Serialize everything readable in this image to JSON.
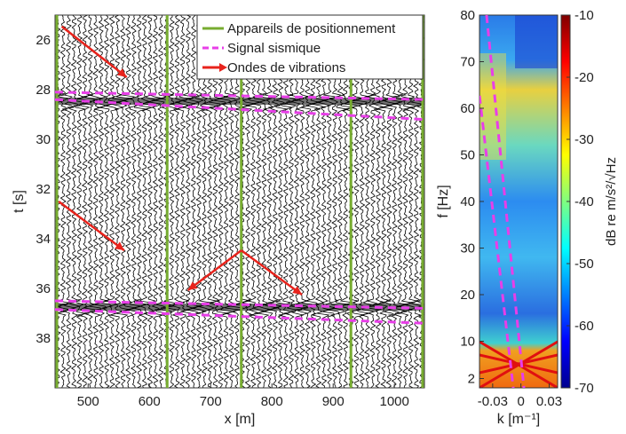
{
  "chart_data": [
    {
      "type": "seismic",
      "xlabel": "x [m]",
      "ylabel": "t [s]",
      "xlim": [
        446,
        1049
      ],
      "xticks": [
        500,
        600,
        700,
        800,
        900,
        1000
      ],
      "ylim": [
        25,
        40
      ],
      "yticks": [
        26,
        28,
        30,
        32,
        34,
        36,
        38
      ],
      "y_reversed": true,
      "series": [
        {
          "name": "Appareils de positionnement",
          "color": "#77ac30",
          "style": "vline",
          "x": [
            449,
            629,
            750,
            929,
            1046
          ]
        },
        {
          "name": "Signal sismique",
          "color": "#e83ee8",
          "style": "dashed",
          "lines": [
            {
              "x": [
                446,
                1049
              ],
              "y": [
                28.1,
                28.4
              ]
            },
            {
              "x": [
                446,
                1049
              ],
              "y": [
                28.4,
                29.2
              ]
            },
            {
              "x": [
                446,
                1049
              ],
              "y": [
                36.5,
                36.8
              ]
            },
            {
              "x": [
                446,
                1049
              ],
              "y": [
                36.85,
                37.4
              ]
            }
          ]
        },
        {
          "name": "Ondes de vibrations",
          "color": "#e8231c",
          "style": "arrow",
          "lines": [
            {
              "x": [
                457,
                563
              ],
              "y": [
                25.46,
                27.5
              ]
            },
            {
              "x": [
                452,
                559
              ],
              "y": [
                32.5,
                34.47
              ]
            },
            {
              "x": [
                750,
                663
              ],
              "y": [
                34.47,
                36.07
              ]
            },
            {
              "x": [
                750,
                849
              ],
              "y": [
                34.47,
                36.25
              ]
            }
          ]
        }
      ]
    },
    {
      "type": "heatmap",
      "xlabel": "k [m⁻¹]",
      "ylabel": "f [Hz]",
      "xlim": [
        -0.044,
        0.039
      ],
      "xticks": [
        -0.03,
        0,
        0.03
      ],
      "ylim": [
        0,
        80
      ],
      "yticks": [
        2,
        10,
        20,
        30,
        40,
        50,
        60,
        70,
        80
      ],
      "colorbar": {
        "label": "dB re m/s²/√Hz",
        "lim": [
          -70,
          -10
        ],
        "ticks": [
          -10,
          -20,
          -30,
          -40,
          -50,
          -60,
          -70
        ],
        "colormap": "jet"
      },
      "series": [
        {
          "color": "#e83ee8",
          "style": "dashed",
          "lines": [
            {
              "x": [
                -0.0365,
                0.0032
              ],
              "y": [
                80,
                0
              ]
            },
            {
              "x": [
                -0.044,
                -0.0081
              ],
              "y": [
                62.7,
                0
              ]
            }
          ]
        }
      ]
    }
  ]
}
